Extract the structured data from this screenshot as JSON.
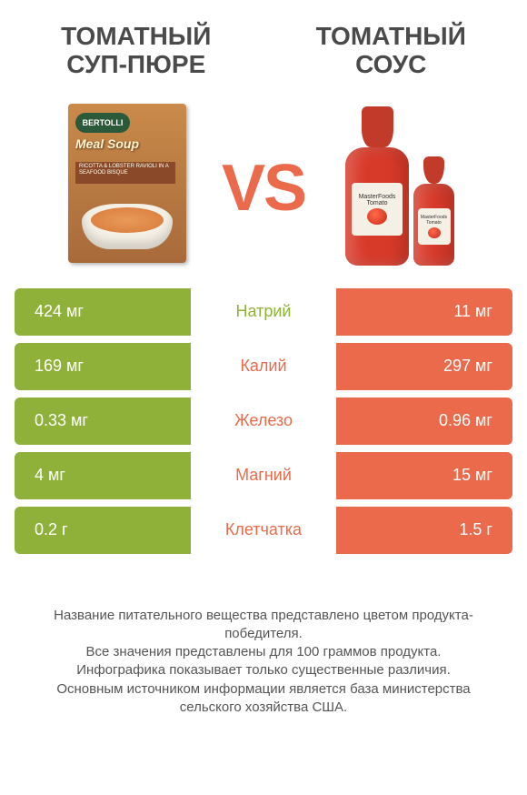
{
  "products": {
    "left": {
      "title": "ТОМАТНЫЙ СУП-ПЮРЕ"
    },
    "right": {
      "title": "ТОМАТНЫЙ СОУС"
    }
  },
  "vs_label": "VS",
  "colors": {
    "left": "#8fb13a",
    "right": "#ea6a4b",
    "vs": "#ea6a4b"
  },
  "image_left": {
    "brand": "BERTOLLI",
    "product": "Meal Soup",
    "tag_text": "RICOTTA & LOBSTER RAVIOLI IN A SEAFOOD BISQUE"
  },
  "image_right": {
    "label_brand": "MasterFoods",
    "label_word": "Tomato"
  },
  "rows": [
    {
      "nutrient": "Натрий",
      "left": "424 мг",
      "right": "11 мг",
      "winner": "left"
    },
    {
      "nutrient": "Калий",
      "left": "169 мг",
      "right": "297 мг",
      "winner": "right"
    },
    {
      "nutrient": "Железо",
      "left": "0.33 мг",
      "right": "0.96 мг",
      "winner": "right"
    },
    {
      "nutrient": "Магний",
      "left": "4 мг",
      "right": "15 мг",
      "winner": "right"
    },
    {
      "nutrient": "Клетчатка",
      "left": "0.2 г",
      "right": "1.5 г",
      "winner": "right"
    }
  ],
  "footer": {
    "line1": "Название питательного вещества представлено цветом продукта-победителя.",
    "line2": "Все значения представлены для 100 граммов продукта.",
    "line3": "Инфографика показывает только существенные различия.",
    "line4": "Основным источником информации является база министерства сельского хозяйства США."
  }
}
